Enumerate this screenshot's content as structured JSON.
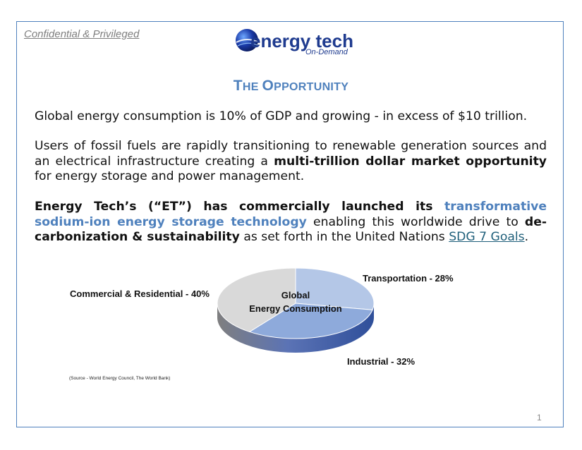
{
  "header": {
    "confidential": "Confidential & Privileged",
    "logo_main": "energy tech",
    "logo_sub": "On-Demand"
  },
  "title": {
    "first": "T",
    "rest": "HE ",
    "first2": "O",
    "rest2": "PPORTUNITY"
  },
  "paragraph1": "Global energy consumption is 10% of GDP and growing - in excess of $10 trillion.",
  "paragraph2": {
    "a": "Users of fossil fuels are rapidly transitioning to renewable generation sources and an electrical infrastructure creating a ",
    "b": "multi-trillion dollar market opportunity",
    "c": " for energy storage and power management."
  },
  "paragraph3": {
    "a": "Energy Tech’s (“ET”) has commercially launched its ",
    "b": "transformative sodium-ion energy storage technology",
    "c": " enabling this worldwide drive to ",
    "d": "de-carbonization & sustainability",
    "e": " as set forth in the United Nations ",
    "link": "SDG 7 Goals",
    "f": "."
  },
  "chart_data": {
    "type": "pie",
    "title": "Global Energy Consumption",
    "title_line1": "Global",
    "title_line2": "Energy Consumption",
    "slices": [
      {
        "label": "Transportation - 28%",
        "name": "Transportation",
        "value": 28,
        "color": "#b4c7e7"
      },
      {
        "label": "Industrial - 32%",
        "name": "Industrial",
        "value": 32,
        "color": "#8eaadb"
      },
      {
        "label": "Commercial & Residential - 40%",
        "name": "Commercial & Residential",
        "value": 40,
        "color": "#d9d9d9"
      }
    ]
  },
  "source": "(Source - World Energy Council, The World Bank)",
  "page_number": "1"
}
